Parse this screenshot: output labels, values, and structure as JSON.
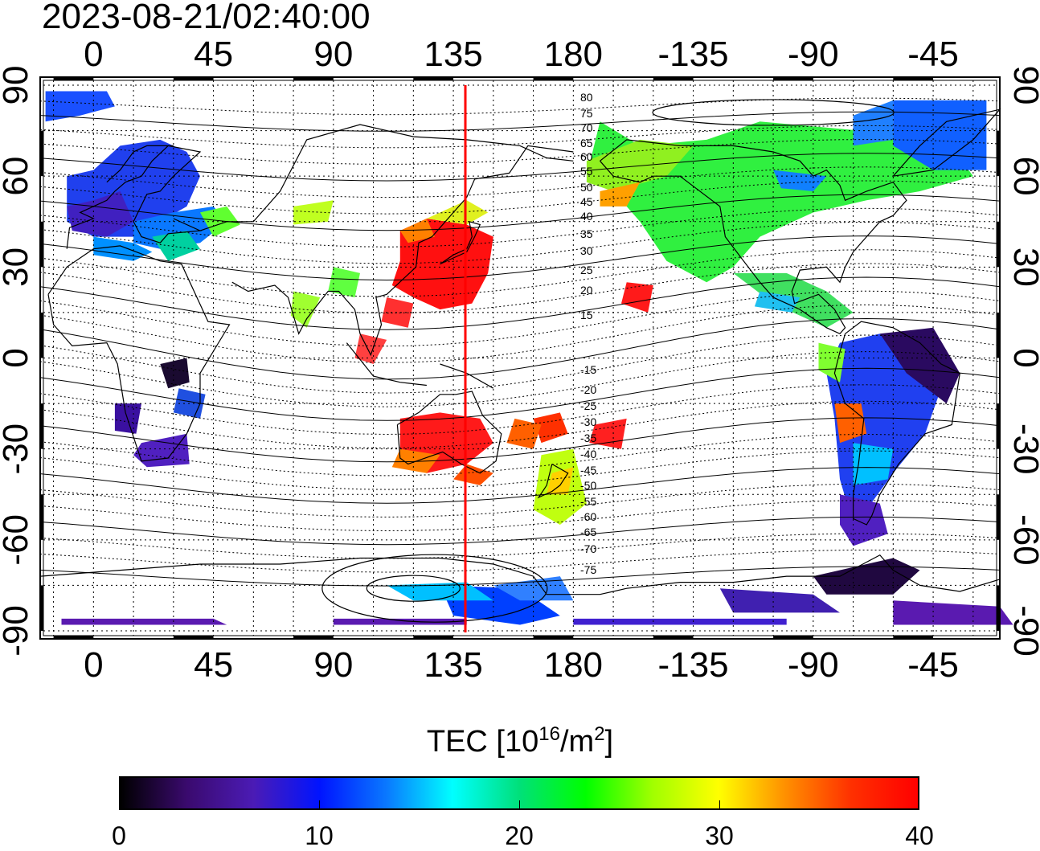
{
  "timestamp": "2023-08-21/02:40:00",
  "map": {
    "top_lon_ticks": [
      "0",
      "45",
      "90",
      "135",
      "180",
      "-135",
      "-90",
      "-45"
    ],
    "bottom_lon_ticks": [
      "0",
      "45",
      "90",
      "135",
      "180",
      "-135",
      "-90",
      "-45"
    ],
    "left_lat_ticks": [
      "90",
      "60",
      "30",
      "0",
      "-30",
      "-60",
      "-90"
    ],
    "right_lat_ticks": [
      "90",
      "60",
      "30",
      "0",
      "-30",
      "-60",
      "-90"
    ],
    "current_meridian_lon": 139.5,
    "current_meridian_color": "#ff0000",
    "north_mag_labels": [
      "80",
      "75",
      "70",
      "65",
      "60",
      "55",
      "50",
      "45",
      "40",
      "35",
      "30",
      "25",
      "20",
      "15"
    ],
    "south_mag_labels": [
      "-15",
      "-20",
      "-25",
      "-30",
      "-35",
      "-40",
      "-45",
      "-50",
      "-55",
      "-60",
      "-65",
      "-70",
      "-75"
    ]
  },
  "colorbar": {
    "title_main": "TEC  [10",
    "title_sup1": "16",
    "title_mid": "/m",
    "title_sup2": "2",
    "title_end": "]",
    "min": 0,
    "max": 40,
    "tick_labels": [
      "0",
      "10",
      "20",
      "30",
      "40"
    ],
    "colors": [
      "#000000",
      "#3a0a6e",
      "#4b1bb5",
      "#0014ff",
      "#0a78ff",
      "#00ffff",
      "#00e07a",
      "#00ff00",
      "#a0ff00",
      "#ffff00",
      "#ff9000",
      "#ff3000",
      "#ff0000"
    ]
  }
}
